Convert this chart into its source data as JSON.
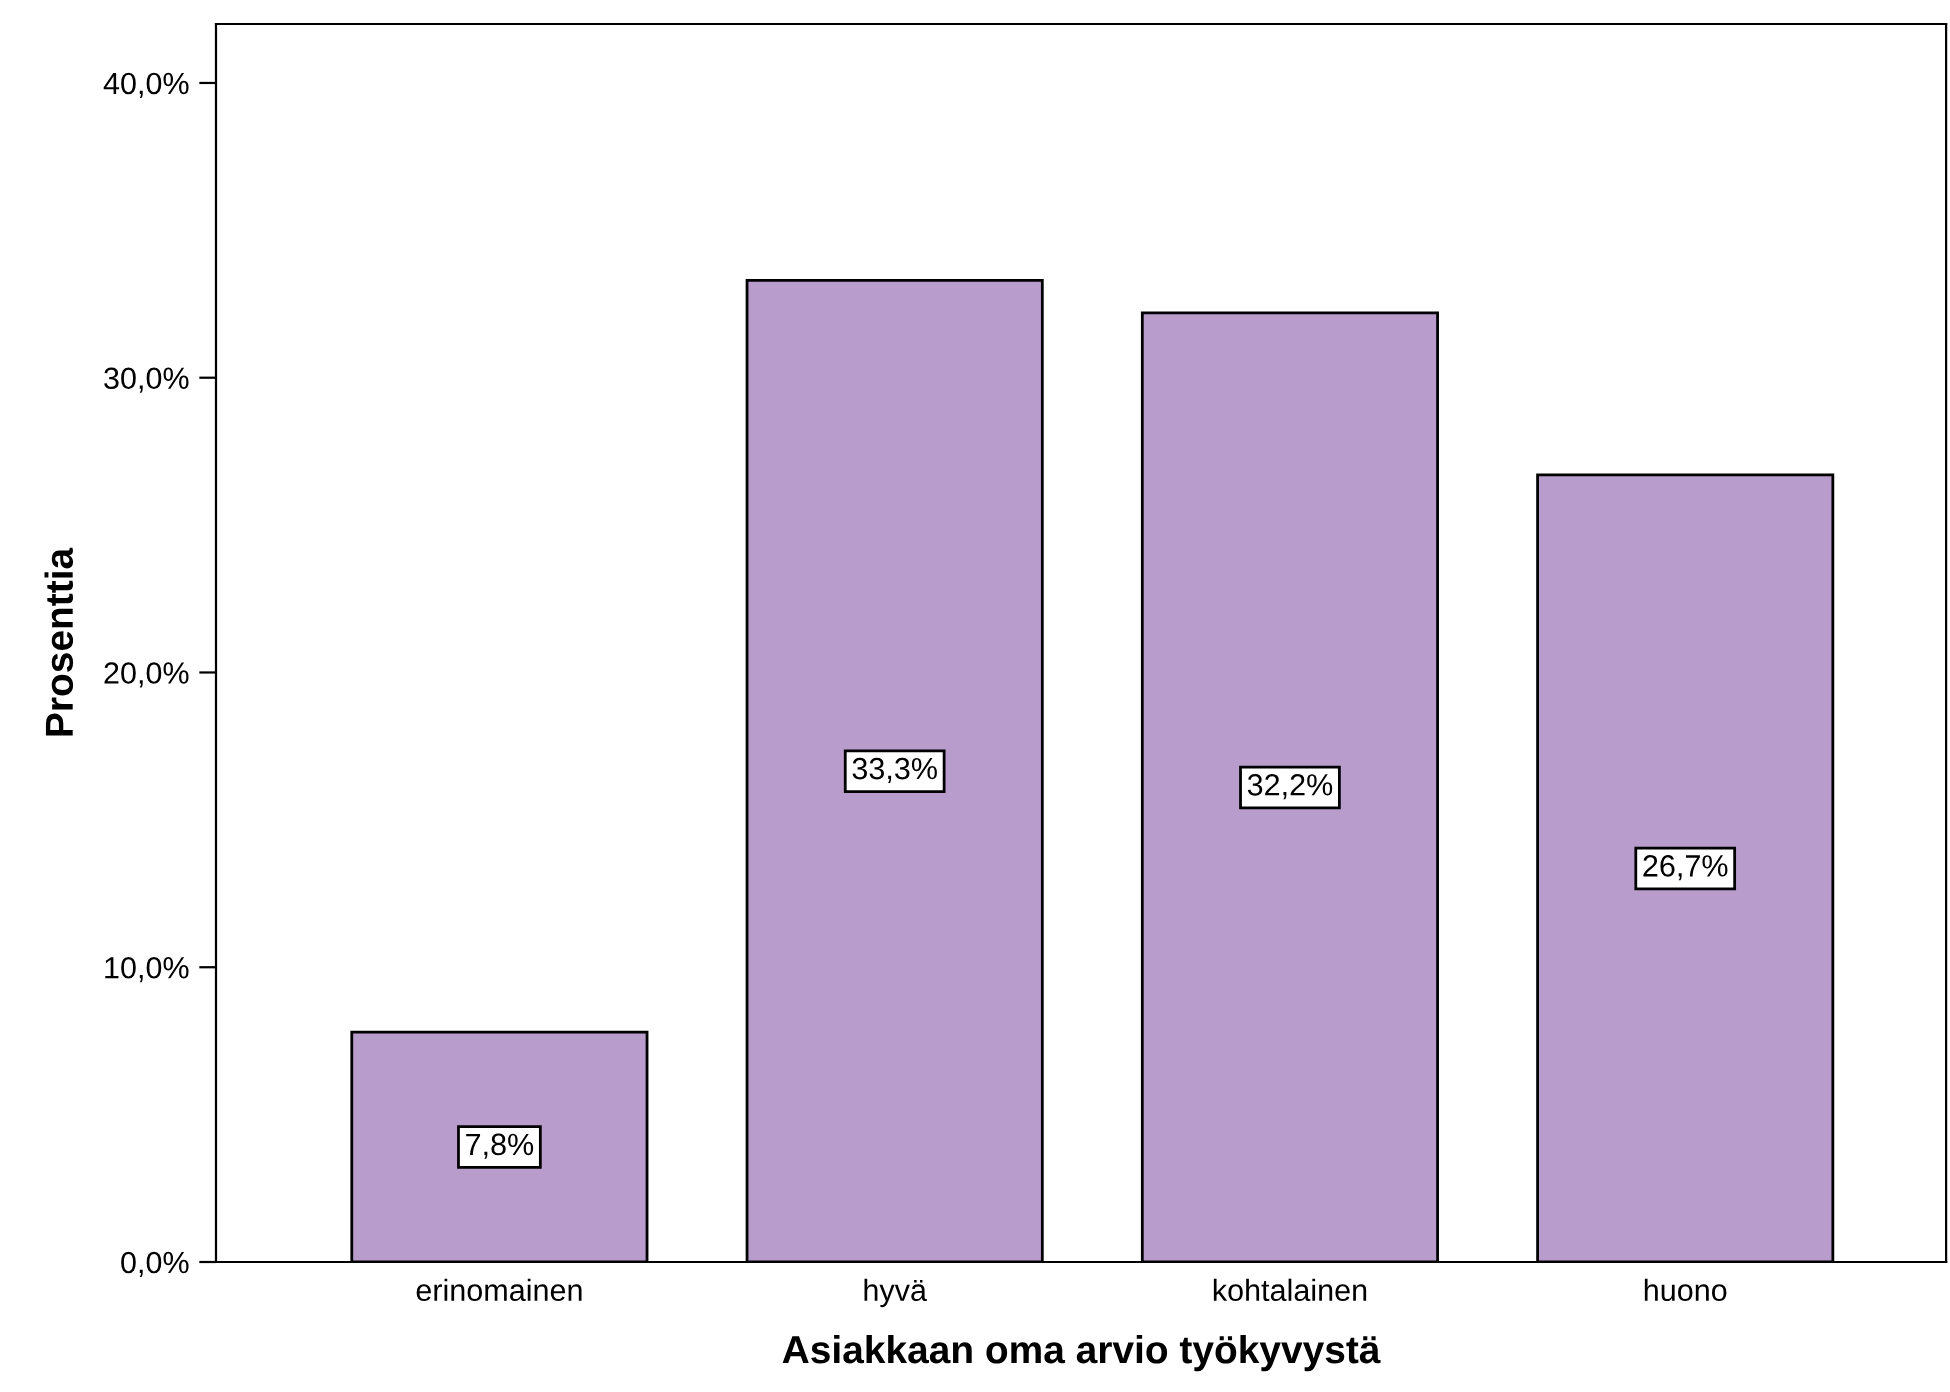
{
  "chart_data": {
    "type": "bar",
    "xlabel": "Asiakkaan oma arvio työkyvystä",
    "ylabel": "Prosenttia",
    "categories": [
      "erinomainen",
      "hyvä",
      "kohtalainen",
      "huono"
    ],
    "values": [
      7.8,
      33.3,
      32.2,
      26.7
    ],
    "value_labels": [
      "7,8%",
      "33,3%",
      "32,2%",
      "26,7%"
    ],
    "color": "#b89ccb",
    "ylim": [
      0,
      42
    ],
    "yticks": [
      {
        "value": 0,
        "label": "0,0%"
      },
      {
        "value": 10,
        "label": "10,0%"
      },
      {
        "value": 20,
        "label": "20,0%"
      },
      {
        "value": 30,
        "label": "30,0%"
      },
      {
        "value": 40,
        "label": "40,0%"
      }
    ],
    "grid": false
  }
}
